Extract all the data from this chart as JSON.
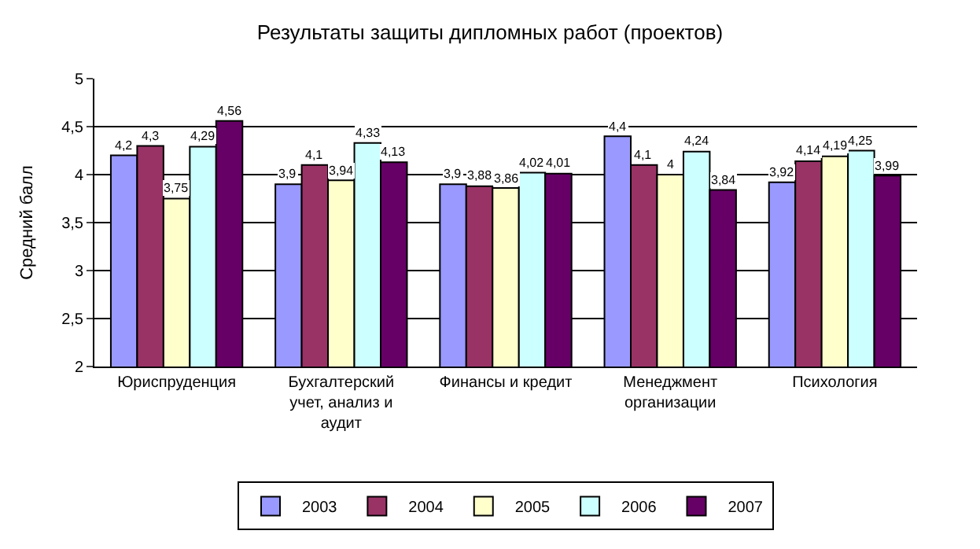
{
  "chart_data": {
    "type": "bar",
    "title": "Результаты защиты дипломных работ (проектов)",
    "ylabel": "Средний балл",
    "categories": [
      "Юриспруденция",
      "Бухгалтерский\nучет, анализ и\nаудит",
      "Финансы и кредит",
      "Менеджмент\nорганизации",
      "Психология"
    ],
    "series": [
      {
        "name": "2003",
        "color": "#9999ff",
        "values": [
          4.2,
          3.9,
          3.9,
          4.4,
          3.92
        ],
        "value_labels": [
          "4,2",
          "3,9",
          "3,9",
          "4,4",
          "3,92"
        ]
      },
      {
        "name": "2004",
        "color": "#993366",
        "values": [
          4.3,
          4.1,
          3.88,
          4.1,
          4.14
        ],
        "value_labels": [
          "4,3",
          "4,1",
          "3,88",
          "4,1",
          "4,14"
        ]
      },
      {
        "name": "2005",
        "color": "#ffffcc",
        "values": [
          3.75,
          3.94,
          3.86,
          4,
          4.19
        ],
        "value_labels": [
          "3,75",
          "3,94",
          "3,86",
          "4",
          "4,19"
        ]
      },
      {
        "name": "2006",
        "color": "#ccffff",
        "values": [
          4.29,
          4.33,
          4.02,
          4.24,
          4.25
        ],
        "value_labels": [
          "4,29",
          "4,33",
          "4,02",
          "4,24",
          "4,25"
        ]
      },
      {
        "name": "2007",
        "color": "#660066",
        "values": [
          4.56,
          4.13,
          4.01,
          3.84,
          3.99
        ],
        "value_labels": [
          "4,56",
          "4,13",
          "4,01",
          "3,84",
          "3,99"
        ]
      }
    ],
    "ylim": [
      2,
      5
    ],
    "yticks": [
      {
        "value": 2,
        "label": "2"
      },
      {
        "value": 2.5,
        "label": "2,5"
      },
      {
        "value": 3,
        "label": "3"
      },
      {
        "value": 3.5,
        "label": "3,5"
      },
      {
        "value": 4,
        "label": "4"
      },
      {
        "value": 4.5,
        "label": "4,5"
      },
      {
        "value": 5,
        "label": "5"
      }
    ],
    "grid": "y",
    "legend": "bottom"
  }
}
